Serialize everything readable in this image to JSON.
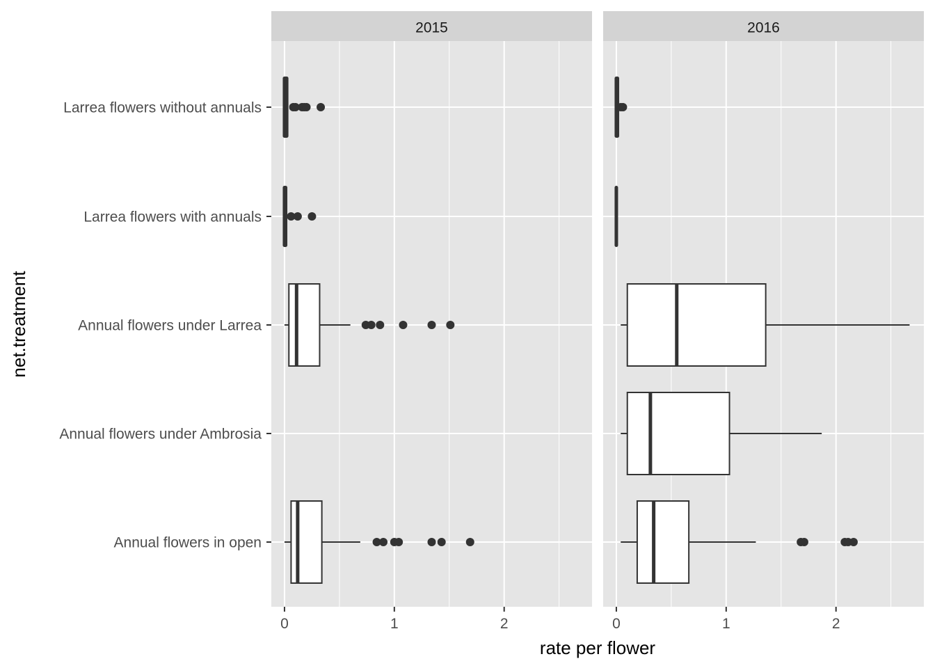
{
  "chart_data": {
    "type": "boxplot",
    "title": "",
    "xlabel": "rate per flower",
    "ylabel": "net.treatment",
    "xlim": [
      -0.12,
      2.8
    ],
    "x_ticks": [
      0,
      1,
      2
    ],
    "x_minor_ticks": [
      0.5,
      1.5,
      2.5
    ],
    "grid": true,
    "legend": "none",
    "colors": {
      "panel_bg": "#e5e5e5",
      "strip_bg": "#d3d3d3",
      "grid": "#ffffff",
      "box_fill": "#ffffff",
      "box_line": "#333333",
      "text_dark": "#333333",
      "text_axis": "#4d4d4d",
      "title_text": "#000000"
    },
    "categories": [
      "Larrea flowers without annuals",
      "Larrea flowers with annuals",
      "Annual flowers under Larrea",
      "Annual flowers under Ambrosia",
      "Annual flowers in open"
    ],
    "facets": [
      {
        "label": "2015",
        "boxes": [
          {
            "category": "Larrea flowers without annuals",
            "min": 0.0,
            "q1": 0.0,
            "median": 0.0,
            "q3": 0.02,
            "max": 0.02,
            "outliers": [
              0.08,
              0.1,
              0.16,
              0.18,
              0.2,
              0.33
            ]
          },
          {
            "category": "Larrea flowers with annuals",
            "min": 0.0,
            "q1": 0.0,
            "median": 0.0,
            "q3": 0.01,
            "max": 0.01,
            "outliers": [
              0.06,
              0.12,
              0.25
            ]
          },
          {
            "category": "Annual flowers under Larrea",
            "min": 0.0,
            "q1": 0.04,
            "median": 0.11,
            "q3": 0.32,
            "max": 0.6,
            "outliers": [
              0.74,
              0.79,
              0.87,
              1.08,
              1.34,
              1.51
            ]
          },
          {
            "category": "Annual flowers in open",
            "min": 0.0,
            "q1": 0.06,
            "median": 0.12,
            "q3": 0.34,
            "max": 0.69,
            "outliers": [
              0.84,
              0.9,
              1.0,
              1.04,
              1.34,
              1.43,
              1.69
            ]
          }
        ]
      },
      {
        "label": "2016",
        "boxes": [
          {
            "category": "Larrea flowers without annuals",
            "min": 0.0,
            "q1": 0.0,
            "median": 0.0,
            "q3": 0.01,
            "max": 0.01,
            "outliers": [
              0.04,
              0.06
            ]
          },
          {
            "category": "Larrea flowers with annuals",
            "min": 0.0,
            "q1": 0.0,
            "median": 0.0,
            "q3": 0.0,
            "max": 0.0,
            "outliers": []
          },
          {
            "category": "Annual flowers under Larrea",
            "min": 0.04,
            "q1": 0.1,
            "median": 0.55,
            "q3": 1.36,
            "max": 2.67,
            "outliers": []
          },
          {
            "category": "Annual flowers under Ambrosia",
            "min": 0.04,
            "q1": 0.1,
            "median": 0.31,
            "q3": 1.03,
            "max": 1.87,
            "outliers": []
          },
          {
            "category": "Annual flowers in open",
            "min": 0.04,
            "q1": 0.19,
            "median": 0.34,
            "q3": 0.66,
            "max": 1.27,
            "outliers": [
              1.68,
              1.71,
              2.08,
              2.11,
              2.16
            ]
          }
        ]
      }
    ]
  }
}
